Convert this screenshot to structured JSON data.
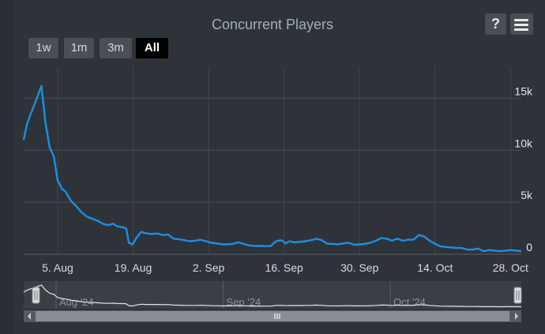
{
  "chart_data": {
    "type": "line",
    "title": "Concurrent Players",
    "range_buttons": [
      "1w",
      "1m",
      "3m",
      "All"
    ],
    "selected_range": "All",
    "y_ticks": [
      {
        "value": 0,
        "label": "0"
      },
      {
        "value": 5000,
        "label": "5k"
      },
      {
        "value": 10000,
        "label": "10k"
      },
      {
        "value": 15000,
        "label": "15k"
      }
    ],
    "ylim": [
      0,
      18000
    ],
    "x_ticks": [
      {
        "day": 5,
        "label": "5. Aug"
      },
      {
        "day": 19,
        "label": "19. Aug"
      },
      {
        "day": 33,
        "label": "2. Sep"
      },
      {
        "day": 47,
        "label": "16. Sep"
      },
      {
        "day": 61,
        "label": "30. Sep"
      },
      {
        "day": 75,
        "label": "14. Oct"
      },
      {
        "day": 89,
        "label": "28. Oct"
      }
    ],
    "xlim": [
      -1.3,
      91
    ],
    "navigator_labels": [
      {
        "day": 7,
        "label": "Aug '24"
      },
      {
        "day": 38,
        "label": "Sep '24"
      },
      {
        "day": 69,
        "label": "Oct '24"
      }
    ],
    "line_color": "#1e8fe0",
    "series": [
      {
        "points": [
          [
            -1.3,
            11000
          ],
          [
            -0.7,
            12500
          ],
          [
            0,
            13500
          ],
          [
            1,
            14800
          ],
          [
            2,
            16200
          ],
          [
            2.7,
            12800
          ],
          [
            3.5,
            10300
          ],
          [
            4.3,
            9400
          ],
          [
            5,
            7100
          ],
          [
            5.8,
            6300
          ],
          [
            6.5,
            6000
          ],
          [
            7.5,
            5100
          ],
          [
            8.5,
            4600
          ],
          [
            9.5,
            4000
          ],
          [
            10.5,
            3600
          ],
          [
            11.5,
            3400
          ],
          [
            12.5,
            3200
          ],
          [
            13.5,
            2900
          ],
          [
            14.5,
            2800
          ],
          [
            15.2,
            2950
          ],
          [
            16,
            2700
          ],
          [
            17,
            2600
          ],
          [
            17.7,
            2500
          ],
          [
            18.2,
            1100
          ],
          [
            18.9,
            950
          ],
          [
            19.7,
            1650
          ],
          [
            20.5,
            2150
          ],
          [
            21.5,
            2000
          ],
          [
            22.5,
            1950
          ],
          [
            23.5,
            2000
          ],
          [
            24.5,
            1850
          ],
          [
            25.5,
            1900
          ],
          [
            26.5,
            1500
          ],
          [
            27.5,
            1450
          ],
          [
            28.5,
            1350
          ],
          [
            29.5,
            1250
          ],
          [
            30.5,
            1300
          ],
          [
            31.5,
            1400
          ],
          [
            32.5,
            1250
          ],
          [
            33.5,
            1100
          ],
          [
            34.5,
            1050
          ],
          [
            35.5,
            950
          ],
          [
            36.5,
            950
          ],
          [
            37.5,
            1000
          ],
          [
            38.5,
            1150
          ],
          [
            39.5,
            1000
          ],
          [
            40.5,
            850
          ],
          [
            41.5,
            800
          ],
          [
            42.5,
            800
          ],
          [
            43.5,
            780
          ],
          [
            44.5,
            780
          ],
          [
            45.5,
            1250
          ],
          [
            46.5,
            1350
          ],
          [
            47.3,
            1050
          ],
          [
            48,
            1250
          ],
          [
            49,
            1150
          ],
          [
            50,
            1200
          ],
          [
            51,
            1250
          ],
          [
            52,
            1350
          ],
          [
            53,
            1500
          ],
          [
            54,
            1350
          ],
          [
            55,
            1000
          ],
          [
            56,
            1000
          ],
          [
            57,
            950
          ],
          [
            58,
            1050
          ],
          [
            59,
            1100
          ],
          [
            60,
            900
          ],
          [
            61,
            950
          ],
          [
            62,
            1000
          ],
          [
            63,
            1100
          ],
          [
            64,
            1300
          ],
          [
            65,
            1550
          ],
          [
            66,
            1500
          ],
          [
            67,
            1300
          ],
          [
            68,
            1500
          ],
          [
            69,
            1300
          ],
          [
            70,
            1400
          ],
          [
            71,
            1400
          ],
          [
            72,
            1850
          ],
          [
            73,
            1700
          ],
          [
            74,
            1300
          ],
          [
            75,
            1000
          ],
          [
            76,
            750
          ],
          [
            77,
            700
          ],
          [
            78,
            650
          ],
          [
            79,
            600
          ],
          [
            80,
            600
          ],
          [
            81,
            450
          ],
          [
            82,
            450
          ],
          [
            83,
            550
          ],
          [
            84,
            300
          ],
          [
            85,
            400
          ],
          [
            86,
            350
          ],
          [
            87,
            300
          ],
          [
            88,
            350
          ],
          [
            89,
            400
          ],
          [
            90,
            350
          ],
          [
            91,
            300
          ]
        ]
      }
    ],
    "grid": true
  }
}
